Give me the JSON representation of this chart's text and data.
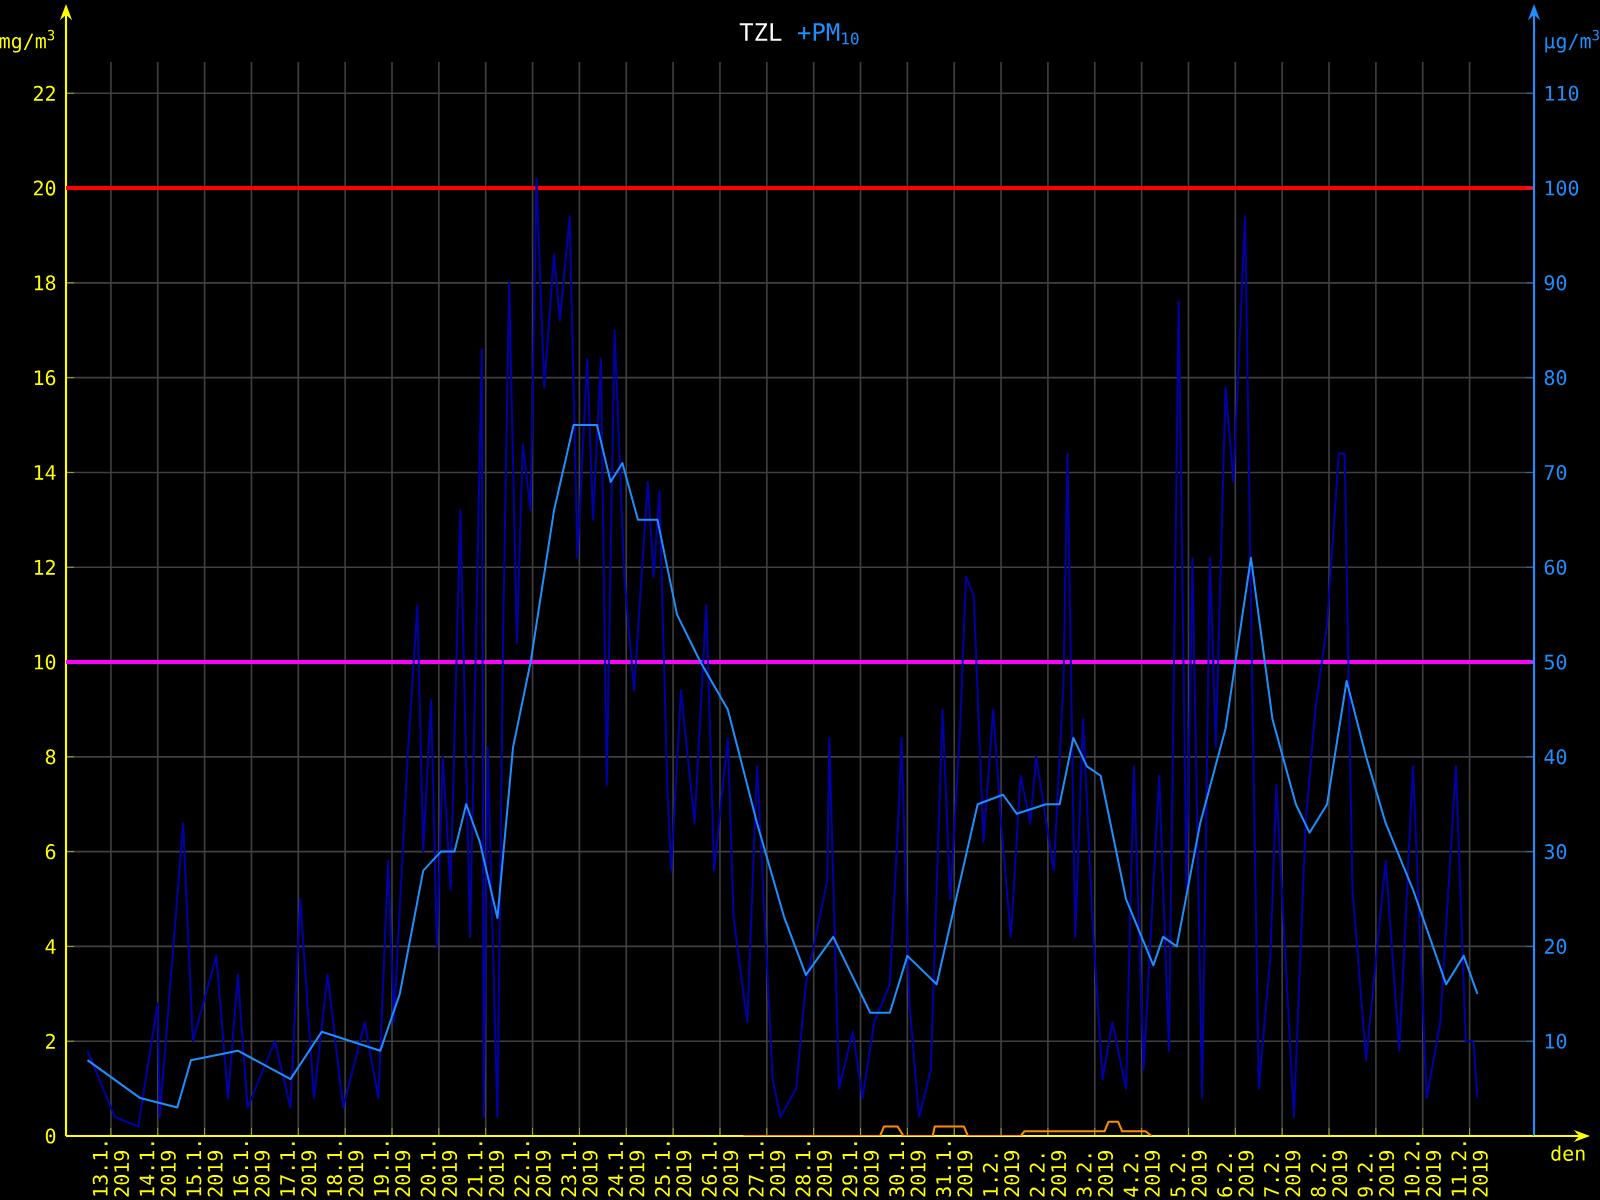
{
  "chart_data": {
    "type": "line",
    "title": "TZL",
    "ylabel": "mg/m$^{3}$",
    "y2label": "µg/m$^{3}$",
    "xlabel": "den",
    "xlim": [
      "2019-01-12T01:00",
      "2019-02-12T09:00"
    ],
    "xticks": [
      {
        "value": "2019-01-13",
        "label": "13.1. 2019"
      },
      {
        "value": "2019-01-14",
        "label": "14.1. 2019"
      },
      {
        "value": "2019-01-15",
        "label": "15.1. 2019"
      },
      {
        "value": "2019-01-16",
        "label": "16.1. 2019"
      },
      {
        "value": "2019-01-17",
        "label": "17.1. 2019"
      },
      {
        "value": "2019-01-18",
        "label": "18.1. 2019"
      },
      {
        "value": "2019-01-19",
        "label": "19.1. 2019"
      },
      {
        "value": "2019-01-20",
        "label": "20.1. 2019"
      },
      {
        "value": "2019-01-21",
        "label": "21.1. 2019"
      },
      {
        "value": "2019-01-22",
        "label": "22.1. 2019"
      },
      {
        "value": "2019-01-23",
        "label": "23.1. 2019"
      },
      {
        "value": "2019-01-24",
        "label": "24.1. 2019"
      },
      {
        "value": "2019-01-25",
        "label": "25.1. 2019"
      },
      {
        "value": "2019-01-26",
        "label": "26.1. 2019"
      },
      {
        "value": "2019-01-27",
        "label": "27.1. 2019"
      },
      {
        "value": "2019-01-28",
        "label": "28.1. 2019"
      },
      {
        "value": "2019-01-29",
        "label": "29.1. 2019"
      },
      {
        "value": "2019-01-30",
        "label": "30.1. 2019"
      },
      {
        "value": "2019-01-31",
        "label": "31.1. 2019"
      },
      {
        "value": "2019-02-01",
        "label": "1.2. 2019"
      },
      {
        "value": "2019-02-02",
        "label": "2.2. 2019"
      },
      {
        "value": "2019-02-03",
        "label": "3.2. 2019"
      },
      {
        "value": "2019-02-04",
        "label": "4.2. 2019"
      },
      {
        "value": "2019-02-05",
        "label": "5.2. 2019"
      },
      {
        "value": "2019-02-06",
        "label": "6.2. 2019"
      },
      {
        "value": "2019-02-07",
        "label": "7.2. 2019"
      },
      {
        "value": "2019-02-08",
        "label": "8.2. 2019"
      },
      {
        "value": "2019-02-09",
        "label": "9.2. 2019"
      },
      {
        "value": "2019-02-10",
        "label": "10.2. 2019"
      },
      {
        "value": "2019-02-11",
        "label": "11.2. 2019"
      }
    ],
    "ylim": [
      0,
      22.66
    ],
    "yticks": [
      0,
      2,
      4,
      6,
      8,
      10,
      12,
      14,
      16,
      18,
      20,
      22
    ],
    "y2lim": [
      0,
      113.3
    ],
    "y2ticks": [
      10,
      20,
      30,
      40,
      50,
      60,
      70,
      80,
      90,
      100,
      110
    ],
    "grid": true,
    "legend": "top",
    "line_style": "solid",
    "marker": "none",
    "ref_lines": [
      {
        "axis": "y",
        "value": 20,
        "color": "#ff0000"
      },
      {
        "axis": "y",
        "value": 10,
        "color": "#ff00ff"
      }
    ],
    "series": [
      {
        "color": "#0000a8",
        "axis": "y2",
        "x": [
          "2019-01-12T12:00",
          "2019-01-13T02:00",
          "2019-01-13T14:00",
          "2019-01-14T00:00",
          "2019-01-14T01:00",
          "2019-01-14T13:00",
          "2019-01-14T18:00",
          "2019-01-15T06:00",
          "2019-01-15T12:00",
          "2019-01-15T17:00",
          "2019-01-15T22:00",
          "2019-01-16T12:00",
          "2019-01-16T20:00",
          "2019-01-17T01:00",
          "2019-01-17T08:00",
          "2019-01-17T15:00",
          "2019-01-17T23:00",
          "2019-01-18T10:00",
          "2019-01-18T17:00",
          "2019-01-18T22:00",
          "2019-01-19T01:00",
          "2019-01-19T08:00",
          "2019-01-19T13:00",
          "2019-01-19T16:00",
          "2019-01-19T20:00",
          "2019-01-19T23:00",
          "2019-01-20T02:00",
          "2019-01-20T06:00",
          "2019-01-20T11:00",
          "2019-01-20T16:00",
          "2019-01-20T22:00",
          "2019-01-20T23:00",
          "2019-01-21T01:00",
          "2019-01-21T06:00",
          "2019-01-21T09:00",
          "2019-01-21T12:00",
          "2019-01-21T16:00",
          "2019-01-21T19:00",
          "2019-01-21T23:00",
          "2019-01-22T02:00",
          "2019-01-22T06:00",
          "2019-01-22T11:00",
          "2019-01-22T14:00",
          "2019-01-22T19:00",
          "2019-01-22T23:00",
          "2019-01-23T04:00",
          "2019-01-23T07:00",
          "2019-01-23T11:00",
          "2019-01-23T14:00",
          "2019-01-23T18:00",
          "2019-01-23T23:00",
          "2019-01-24T04:00",
          "2019-01-24T11:00",
          "2019-01-24T14:00",
          "2019-01-24T17:00",
          "2019-01-24T21:00",
          "2019-01-24T23:00",
          "2019-01-25T04:00",
          "2019-01-25T11:00",
          "2019-01-25T17:00",
          "2019-01-25T21:00",
          "2019-01-26T04:00",
          "2019-01-26T07:00",
          "2019-01-26T14:00",
          "2019-01-26T19:00",
          "2019-01-27T03:00",
          "2019-01-27T07:00",
          "2019-01-27T15:00",
          "2019-01-27T20:00",
          "2019-01-28T03:00",
          "2019-01-28T07:00",
          "2019-01-28T08:00",
          "2019-01-28T13:00",
          "2019-01-28T20:00",
          "2019-01-29T01:00",
          "2019-01-29T07:00",
          "2019-01-29T15:00",
          "2019-01-29T20:00",
          "2019-01-29T21:00",
          "2019-01-30T01:00",
          "2019-01-30T06:00",
          "2019-01-30T12:00",
          "2019-01-30T18:00",
          "2019-01-30T22:00",
          "2019-01-31T03:00",
          "2019-01-31T06:00",
          "2019-01-31T10:00",
          "2019-01-31T15:00",
          "2019-01-31T20:00",
          "2019-02-01T00:00",
          "2019-02-01T05:00",
          "2019-02-01T10:00",
          "2019-02-01T15:00",
          "2019-02-01T18:00",
          "2019-02-02T03:00",
          "2019-02-02T08:00",
          "2019-02-02T10:00",
          "2019-02-02T14:00",
          "2019-02-02T18:00",
          "2019-02-02T23:00",
          "2019-02-03T04:00",
          "2019-02-03T09:00",
          "2019-02-03T16:00",
          "2019-02-03T20:00",
          "2019-02-04T01:00",
          "2019-02-04T09:00",
          "2019-02-04T14:00",
          "2019-02-04T19:00",
          "2019-02-04T23:00",
          "2019-02-05T02:00",
          "2019-02-05T07:00",
          "2019-02-05T11:00",
          "2019-02-05T14:00",
          "2019-02-05T19:00",
          "2019-02-05T23:00",
          "2019-02-06T05:00",
          "2019-02-06T09:00",
          "2019-02-06T12:00",
          "2019-02-06T18:00",
          "2019-02-06T21:00",
          "2019-02-07T06:00",
          "2019-02-07T12:00",
          "2019-02-07T17:00",
          "2019-02-07T23:00",
          "2019-02-08T05:00",
          "2019-02-08T08:00",
          "2019-02-08T12:00",
          "2019-02-08T19:00",
          "2019-02-09T05:00",
          "2019-02-09T12:00",
          "2019-02-09T19:00",
          "2019-02-10T02:00",
          "2019-02-10T09:00",
          "2019-02-10T17:00",
          "2019-02-10T22:00",
          "2019-02-11T02:00",
          "2019-02-11T04:00"
        ],
        "values": [
          9,
          2,
          1,
          14,
          2,
          33,
          10,
          19,
          4,
          17,
          3,
          10,
          3,
          25,
          4,
          17,
          3,
          12,
          4,
          29,
          12,
          40,
          56,
          30,
          46,
          20,
          40,
          26,
          66,
          21,
          83,
          2,
          41,
          2,
          54,
          90,
          52,
          73,
          66,
          101,
          79,
          93,
          86,
          97,
          61,
          82,
          65,
          82,
          37,
          85,
          59,
          47,
          69,
          59,
          68,
          37,
          28,
          47,
          33,
          56,
          28,
          42,
          23,
          12,
          39,
          6,
          2,
          5,
          16,
          23,
          27,
          42,
          5,
          11,
          4,
          12,
          16,
          36,
          42,
          14,
          2,
          7,
          45,
          25,
          43,
          59,
          57,
          31,
          45,
          33,
          21,
          38,
          33,
          40,
          28,
          48,
          72,
          21,
          44,
          22,
          6,
          12,
          5,
          39,
          7,
          38,
          9,
          88,
          26,
          61,
          4,
          61,
          41,
          79,
          69,
          97,
          43,
          5,
          19,
          37,
          2,
          33,
          45,
          54,
          72,
          72,
          26,
          8,
          29,
          9,
          39,
          4,
          12,
          39,
          10,
          10,
          4
        ]
      },
      {
        "name": "+PM$_{10}$",
        "color": "#1e8fff",
        "axis": "y2",
        "x": [
          "2019-01-12T12:00",
          "2019-01-13T15:00",
          "2019-01-14T10:00",
          "2019-01-14T17:00",
          "2019-01-15T17:00",
          "2019-01-16T20:00",
          "2019-01-17T12:00",
          "2019-01-18T18:00",
          "2019-01-19T04:00",
          "2019-01-19T16:00",
          "2019-01-20T01:00",
          "2019-01-20T08:00",
          "2019-01-20T14:00",
          "2019-01-20T21:00",
          "2019-01-21T06:00",
          "2019-01-21T14:00",
          "2019-01-21T23:00",
          "2019-01-22T11:00",
          "2019-01-22T21:00",
          "2019-01-23T09:00",
          "2019-01-23T16:00",
          "2019-01-23T22:00",
          "2019-01-24T06:00",
          "2019-01-24T16:00",
          "2019-01-25T02:00",
          "2019-01-25T14:00",
          "2019-01-26T04:00",
          "2019-01-26T19:00",
          "2019-01-27T09:00",
          "2019-01-27T20:00",
          "2019-01-28T10:00",
          "2019-01-29T05:00",
          "2019-01-29T15:00",
          "2019-01-30T00:00",
          "2019-01-30T15:00",
          "2019-01-31T12:00",
          "2019-02-01T01:00",
          "2019-02-01T08:00",
          "2019-02-01T23:00",
          "2019-02-02T06:00",
          "2019-02-02T13:00",
          "2019-02-02T20:00",
          "2019-02-03T03:00",
          "2019-02-03T16:00",
          "2019-02-04T06:00",
          "2019-02-04T11:00",
          "2019-02-04T18:00",
          "2019-02-05T06:00",
          "2019-02-05T19:00",
          "2019-02-06T08:00",
          "2019-02-06T19:00",
          "2019-02-07T07:00",
          "2019-02-07T14:00",
          "2019-02-07T23:00",
          "2019-02-08T09:00",
          "2019-02-08T19:00",
          "2019-02-09T05:00",
          "2019-02-09T19:00",
          "2019-02-10T12:00",
          "2019-02-10T21:00",
          "2019-02-11T04:00"
        ],
        "values": [
          8,
          4,
          3,
          8,
          9,
          6,
          11,
          9,
          15,
          28,
          30,
          30,
          35,
          31,
          23,
          41,
          50,
          66,
          75,
          75,
          69,
          71,
          65,
          65,
          55,
          50,
          45,
          33,
          23,
          17,
          21,
          13,
          13,
          19,
          16,
          35,
          36,
          34,
          35,
          35,
          42,
          39,
          38,
          25,
          18,
          21,
          20,
          33,
          43,
          61,
          44,
          35,
          32,
          35,
          48,
          40,
          33,
          26,
          16,
          19,
          15
        ]
      },
      {
        "color": "#ff8c00",
        "x": [
          "2019-01-26T12:00",
          "2019-01-29T10:00",
          "2019-01-29T12:00",
          "2019-01-29T19:00",
          "2019-01-29T22:00",
          "2019-01-30T13:00",
          "2019-01-30T14:00",
          "2019-01-31T05:00",
          "2019-01-31T07:00",
          "2019-02-01T10:00",
          "2019-02-01T12:00",
          "2019-02-02T10:00",
          "2019-02-03T05:00",
          "2019-02-03T07:00",
          "2019-02-03T12:00",
          "2019-02-03T14:00",
          "2019-02-04T02:00",
          "2019-02-04T05:00"
        ],
        "values": [
          0,
          0,
          0.2,
          0.2,
          0,
          0,
          0.2,
          0.2,
          0,
          0,
          0.1,
          0.1,
          0.1,
          0.3,
          0.3,
          0.1,
          0.1,
          0
        ]
      }
    ]
  }
}
